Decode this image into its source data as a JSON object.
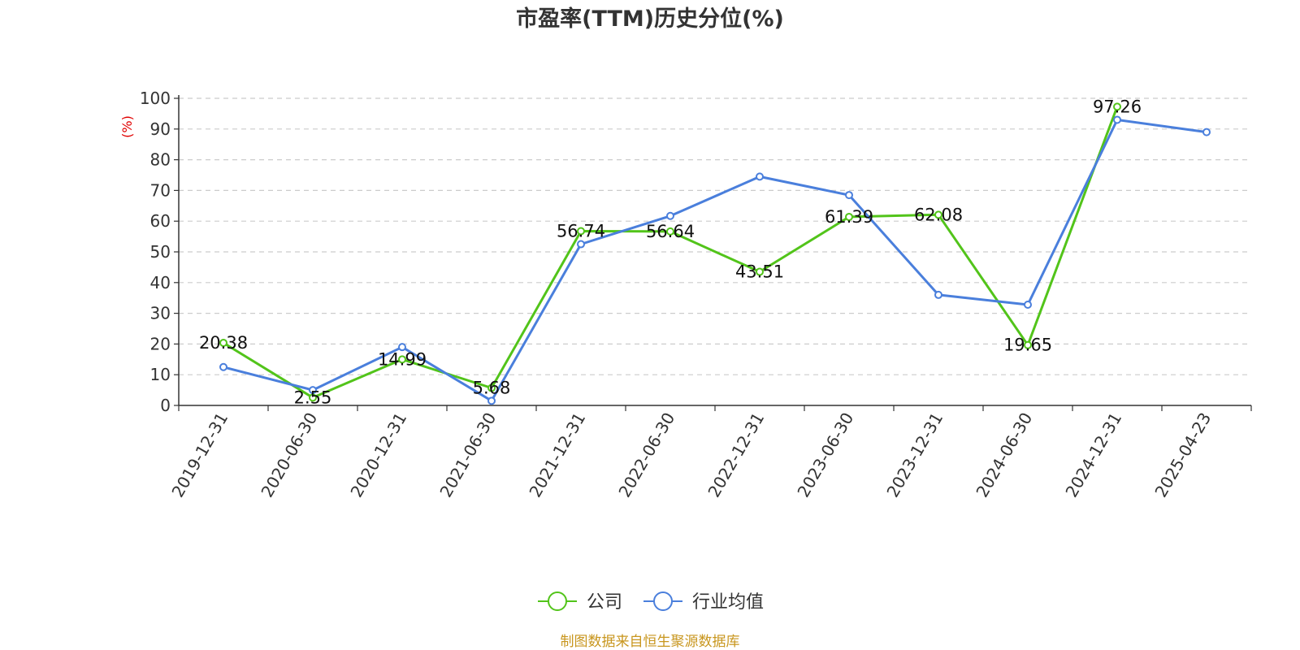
{
  "chart_data": {
    "type": "line",
    "title": "市盈率(TTM)历史分位(%)",
    "ylabel": "(%)",
    "ylim": [
      0,
      100
    ],
    "yticks": [
      0,
      10,
      20,
      30,
      40,
      50,
      60,
      70,
      80,
      90,
      100
    ],
    "grid": "horizontal-dashed",
    "legend_position": "bottom-center",
    "categories": [
      "2019-12-31",
      "2020-06-30",
      "2020-12-31",
      "2021-06-30",
      "2021-12-31",
      "2022-06-30",
      "2022-12-31",
      "2023-06-30",
      "2023-12-31",
      "2024-06-30",
      "2024-12-31",
      "2025-04-23"
    ],
    "series": [
      {
        "name": "公司",
        "color": "#52c41a",
        "values": [
          20.38,
          2.55,
          14.99,
          5.68,
          56.74,
          56.64,
          43.51,
          61.39,
          62.08,
          19.65,
          97.26,
          null
        ],
        "labels": [
          "20.38",
          "2.55",
          "14.99",
          "5.68",
          "56.74",
          "56.64",
          "43.51",
          "61.39",
          "62.08",
          "19.65",
          "97.26",
          null
        ]
      },
      {
        "name": "行业均值",
        "color": "#4a7fdc",
        "values": [
          12.5,
          5.0,
          19.0,
          1.5,
          52.5,
          61.7,
          74.5,
          68.5,
          36.0,
          32.8,
          93.0,
          89.0
        ]
      }
    ]
  },
  "footer": {
    "source": "制图数据来自恒生聚源数据库"
  }
}
